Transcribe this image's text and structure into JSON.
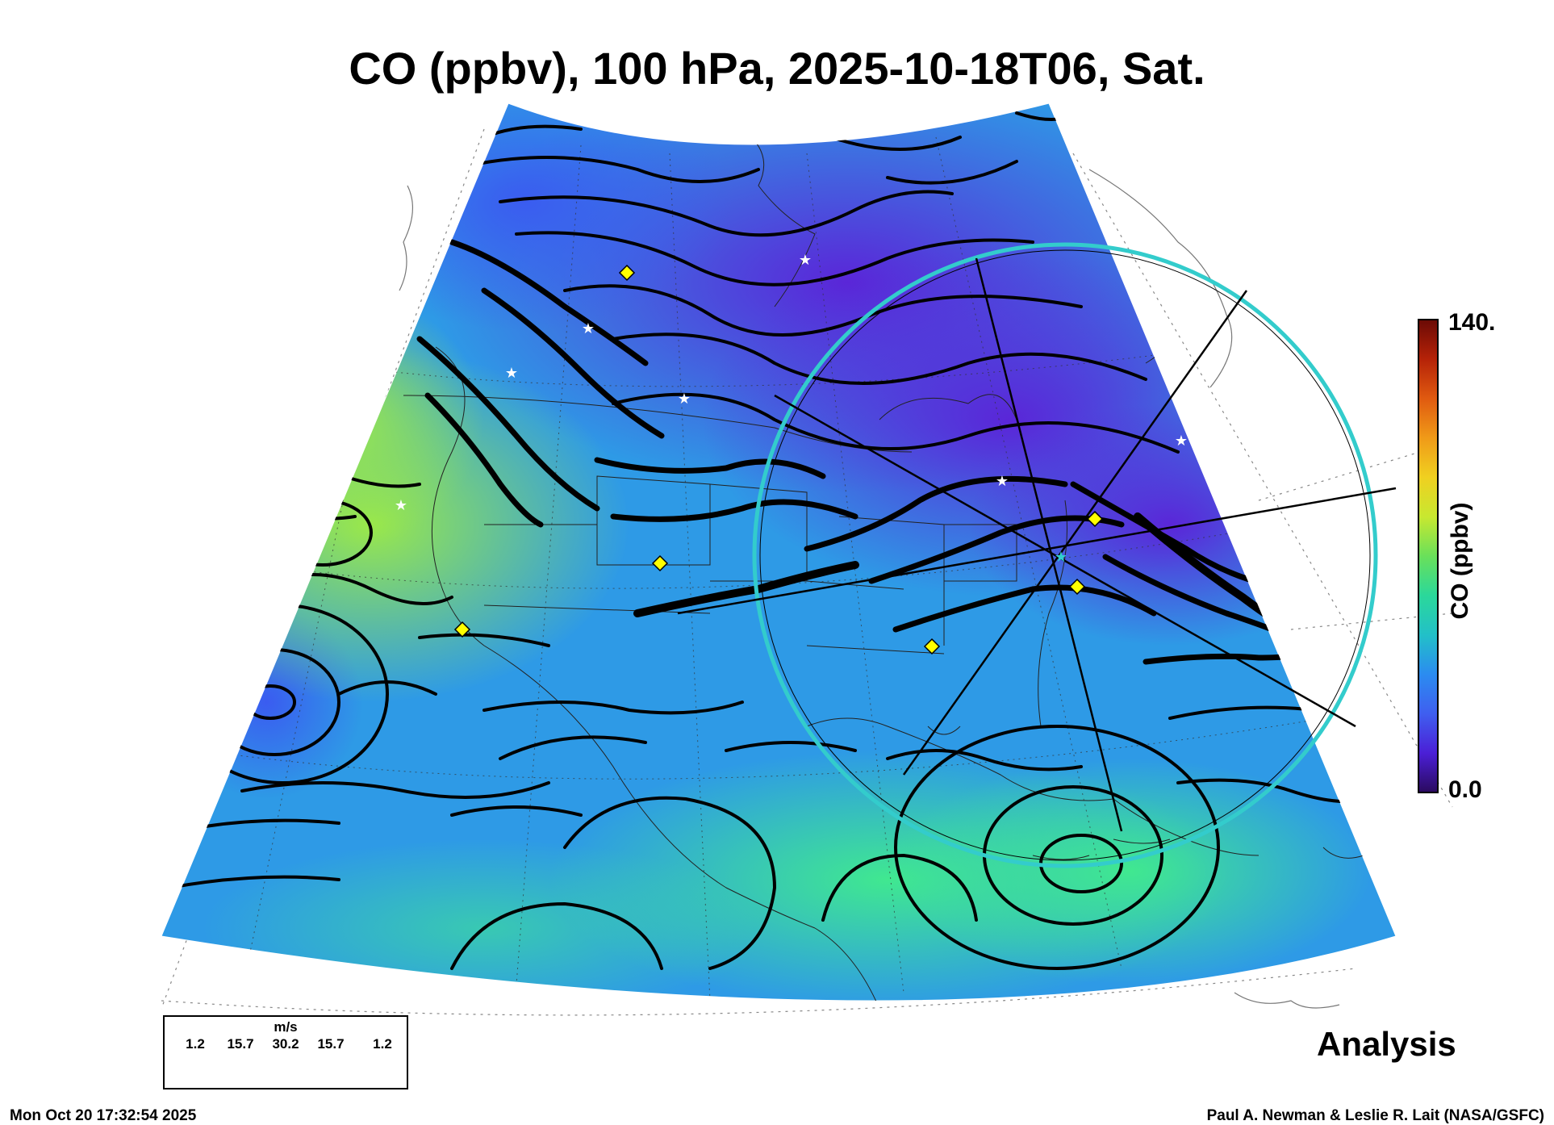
{
  "title": "CO (ppbv), 100 hPa, 2025-10-18T06, Sat.",
  "colorbar": {
    "max_label": "140.",
    "min_label": "0.0",
    "label": "CO (ppbv)",
    "colors": [
      "#2a0a5e",
      "#4b1fd6",
      "#3f5ff0",
      "#2b8cf0",
      "#22c0c8",
      "#2bd89a",
      "#6ae05a",
      "#c8e830",
      "#f0d020",
      "#f09a18",
      "#e05a10",
      "#b52208",
      "#6a0a05"
    ]
  },
  "field_colors": {
    "purple": "#5a2fe0",
    "blue": "#3f66f2",
    "cyan_blue": "#2a9ee8",
    "teal": "#22c4b8",
    "green": "#3be08a",
    "yellow_green": "#8fe84a"
  },
  "markers": {
    "diamond_color": "#ffff00",
    "star_color": "#ffffff",
    "ring_color": "#30d0d0"
  },
  "wind_legend": {
    "unit": "m/s",
    "values": [
      "1.2",
      "15.7",
      "30.2",
      "15.7",
      "1.2"
    ]
  },
  "analysis_label": "Analysis",
  "timestamp": "Mon Oct 20 17:32:54 2025",
  "credit": "Paul A. Newman & Leslie R. Lait (NASA/GSFC)"
}
